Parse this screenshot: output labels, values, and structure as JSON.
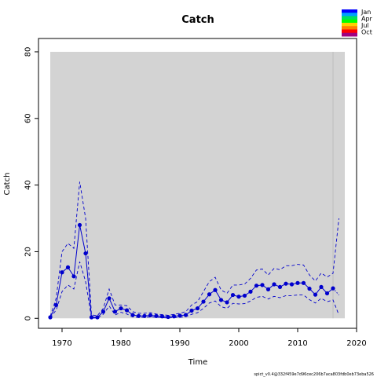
{
  "chart_data": {
    "type": "line",
    "title": "Catch",
    "xlabel": "Time",
    "ylabel": "Catch",
    "xlim": [
      1966,
      2020
    ],
    "ylim": [
      -3,
      84
    ],
    "xticks": [
      1970,
      1980,
      1990,
      2000,
      2010,
      2020
    ],
    "yticks": [
      0,
      20,
      40,
      60,
      80
    ],
    "shaded_region": [
      1968,
      2018
    ],
    "vline_x": 2016,
    "observed": {
      "x": [
        1968,
        1969,
        1970,
        1971,
        1972,
        1973,
        1974,
        1975,
        1976,
        1977,
        1978,
        1979,
        1980,
        1981,
        1982,
        1983,
        1984,
        1985,
        1986,
        1987,
        1988,
        1989,
        1990,
        1991,
        1992,
        1993,
        1994,
        1995,
        1996,
        1997,
        1998,
        1999,
        2000,
        2001,
        2002,
        2003,
        2004,
        2005,
        2006,
        2007,
        2008,
        2009,
        2010,
        2011,
        2012,
        2013,
        2014,
        2015,
        2016
      ],
      "y": [
        0.3,
        4.0,
        13.8,
        15.3,
        12.6,
        28.0,
        19.5,
        0.3,
        0.3,
        2.0,
        6.0,
        2.0,
        3.0,
        2.4,
        1.0,
        0.7,
        0.7,
        0.9,
        0.7,
        0.6,
        0.4,
        0.6,
        0.8,
        1.0,
        2.3,
        3.0,
        5.0,
        7.2,
        8.5,
        5.5,
        4.8,
        7.0,
        6.5,
        6.8,
        8.0,
        9.8,
        10.0,
        8.7,
        10.2,
        9.4,
        10.4,
        10.2,
        10.6,
        10.6,
        8.9,
        7.1,
        9.4,
        7.5,
        9.0
      ]
    },
    "predicted": {
      "x": [
        2016,
        2017
      ],
      "y": [
        9.0,
        7.0
      ]
    },
    "ci_upper": {
      "x": [
        1968,
        1969,
        1970,
        1971,
        1972,
        1973,
        1974,
        1975,
        1976,
        1977,
        1978,
        1979,
        1980,
        1981,
        1982,
        1983,
        1984,
        1985,
        1986,
        1987,
        1988,
        1989,
        1990,
        1991,
        1992,
        1993,
        1994,
        1995,
        1996,
        1997,
        1998,
        1999,
        2000,
        2001,
        2002,
        2003,
        2004,
        2005,
        2006,
        2007,
        2008,
        2009,
        2010,
        2011,
        2012,
        2013,
        2014,
        2015,
        2016,
        2017
      ],
      "y": [
        0.6,
        6.0,
        20.0,
        22.5,
        21.0,
        41.0,
        30.0,
        1.0,
        0.8,
        3.0,
        8.8,
        4.0,
        4.0,
        3.8,
        2.0,
        1.5,
        1.5,
        1.7,
        1.3,
        1.1,
        0.9,
        1.2,
        1.5,
        2.0,
        4.0,
        5.0,
        8.0,
        11.0,
        12.3,
        8.5,
        7.5,
        10.0,
        10.0,
        10.3,
        12.0,
        14.5,
        14.8,
        13.0,
        15.0,
        14.6,
        15.8,
        15.8,
        16.2,
        16.0,
        13.0,
        11.2,
        13.6,
        12.4,
        13.5,
        30.0
      ]
    },
    "ci_lower": {
      "x": [
        1968,
        1969,
        1970,
        1971,
        1972,
        1973,
        1974,
        1975,
        1976,
        1977,
        1978,
        1979,
        1980,
        1981,
        1982,
        1983,
        1984,
        1985,
        1986,
        1987,
        1988,
        1989,
        1990,
        1991,
        1992,
        1993,
        1994,
        1995,
        1996,
        1997,
        1998,
        1999,
        2000,
        2001,
        2002,
        2003,
        2004,
        2005,
        2006,
        2007,
        2008,
        2009,
        2010,
        2011,
        2012,
        2013,
        2014,
        2015,
        2016,
        2017
      ],
      "y": [
        0.1,
        2.5,
        8.0,
        10.0,
        8.8,
        17.0,
        11.0,
        0.1,
        0.1,
        1.2,
        3.7,
        1.0,
        1.8,
        1.3,
        0.4,
        0.3,
        0.3,
        0.4,
        0.3,
        0.2,
        0.1,
        0.2,
        0.3,
        0.5,
        1.2,
        1.7,
        3.0,
        4.6,
        5.2,
        3.5,
        3.0,
        4.5,
        4.3,
        4.4,
        5.2,
        6.3,
        6.6,
        5.8,
        6.6,
        6.2,
        6.8,
        6.8,
        7.0,
        7.0,
        5.6,
        4.6,
        6.0,
        5.0,
        5.5,
        1.0
      ]
    },
    "legend": {
      "labels": [
        "Jan",
        "Apr",
        "Jul",
        "Oct"
      ],
      "colors": [
        "#0000FF",
        "#00A0FF",
        "#00E060",
        "#00FF00",
        "#FFD000",
        "#FF8000",
        "#FF0000",
        "#A00080"
      ],
      "placement": "top-right"
    },
    "colors": {
      "series": "#0000CD",
      "shade": "#D3D3D3",
      "vline": "#BEBEBE"
    }
  },
  "footer_text": "spict_v0.4@332f459e7d96cec206b7aca803fdb0eb73eba526"
}
